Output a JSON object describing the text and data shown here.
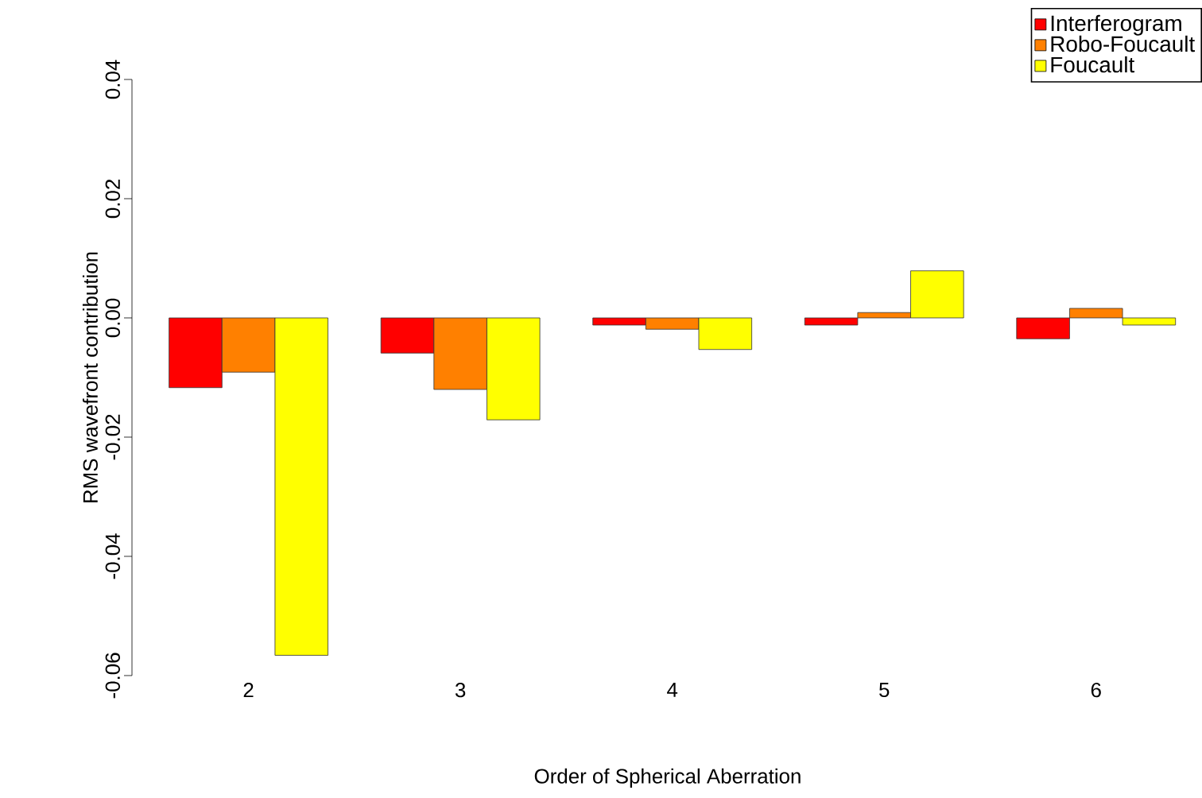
{
  "chart_data": {
    "type": "bar",
    "xlabel": "Order of Spherical Aberration",
    "ylabel": "RMS wavefront contribution",
    "categories": [
      "2",
      "3",
      "4",
      "5",
      "6"
    ],
    "series": [
      {
        "name": "Interferogram",
        "color": "#ff0000",
        "values": [
          -0.0117,
          -0.0059,
          -0.0012,
          -0.0012,
          -0.0035
        ]
      },
      {
        "name": "Robo-Foucault",
        "color": "#ff8000",
        "values": [
          -0.0091,
          -0.012,
          -0.0019,
          0.0009,
          0.0016
        ]
      },
      {
        "name": "Foucault",
        "color": "#ffff00",
        "values": [
          -0.0566,
          -0.0171,
          -0.0053,
          0.0079,
          -0.0012
        ]
      }
    ],
    "ylim": [
      -0.06,
      0.04
    ],
    "yticks": [
      -0.06,
      -0.04,
      -0.02,
      {
        "value": 0,
        "label": "0.00"
      },
      0.02,
      0.04
    ],
    "legend": "top right"
  }
}
